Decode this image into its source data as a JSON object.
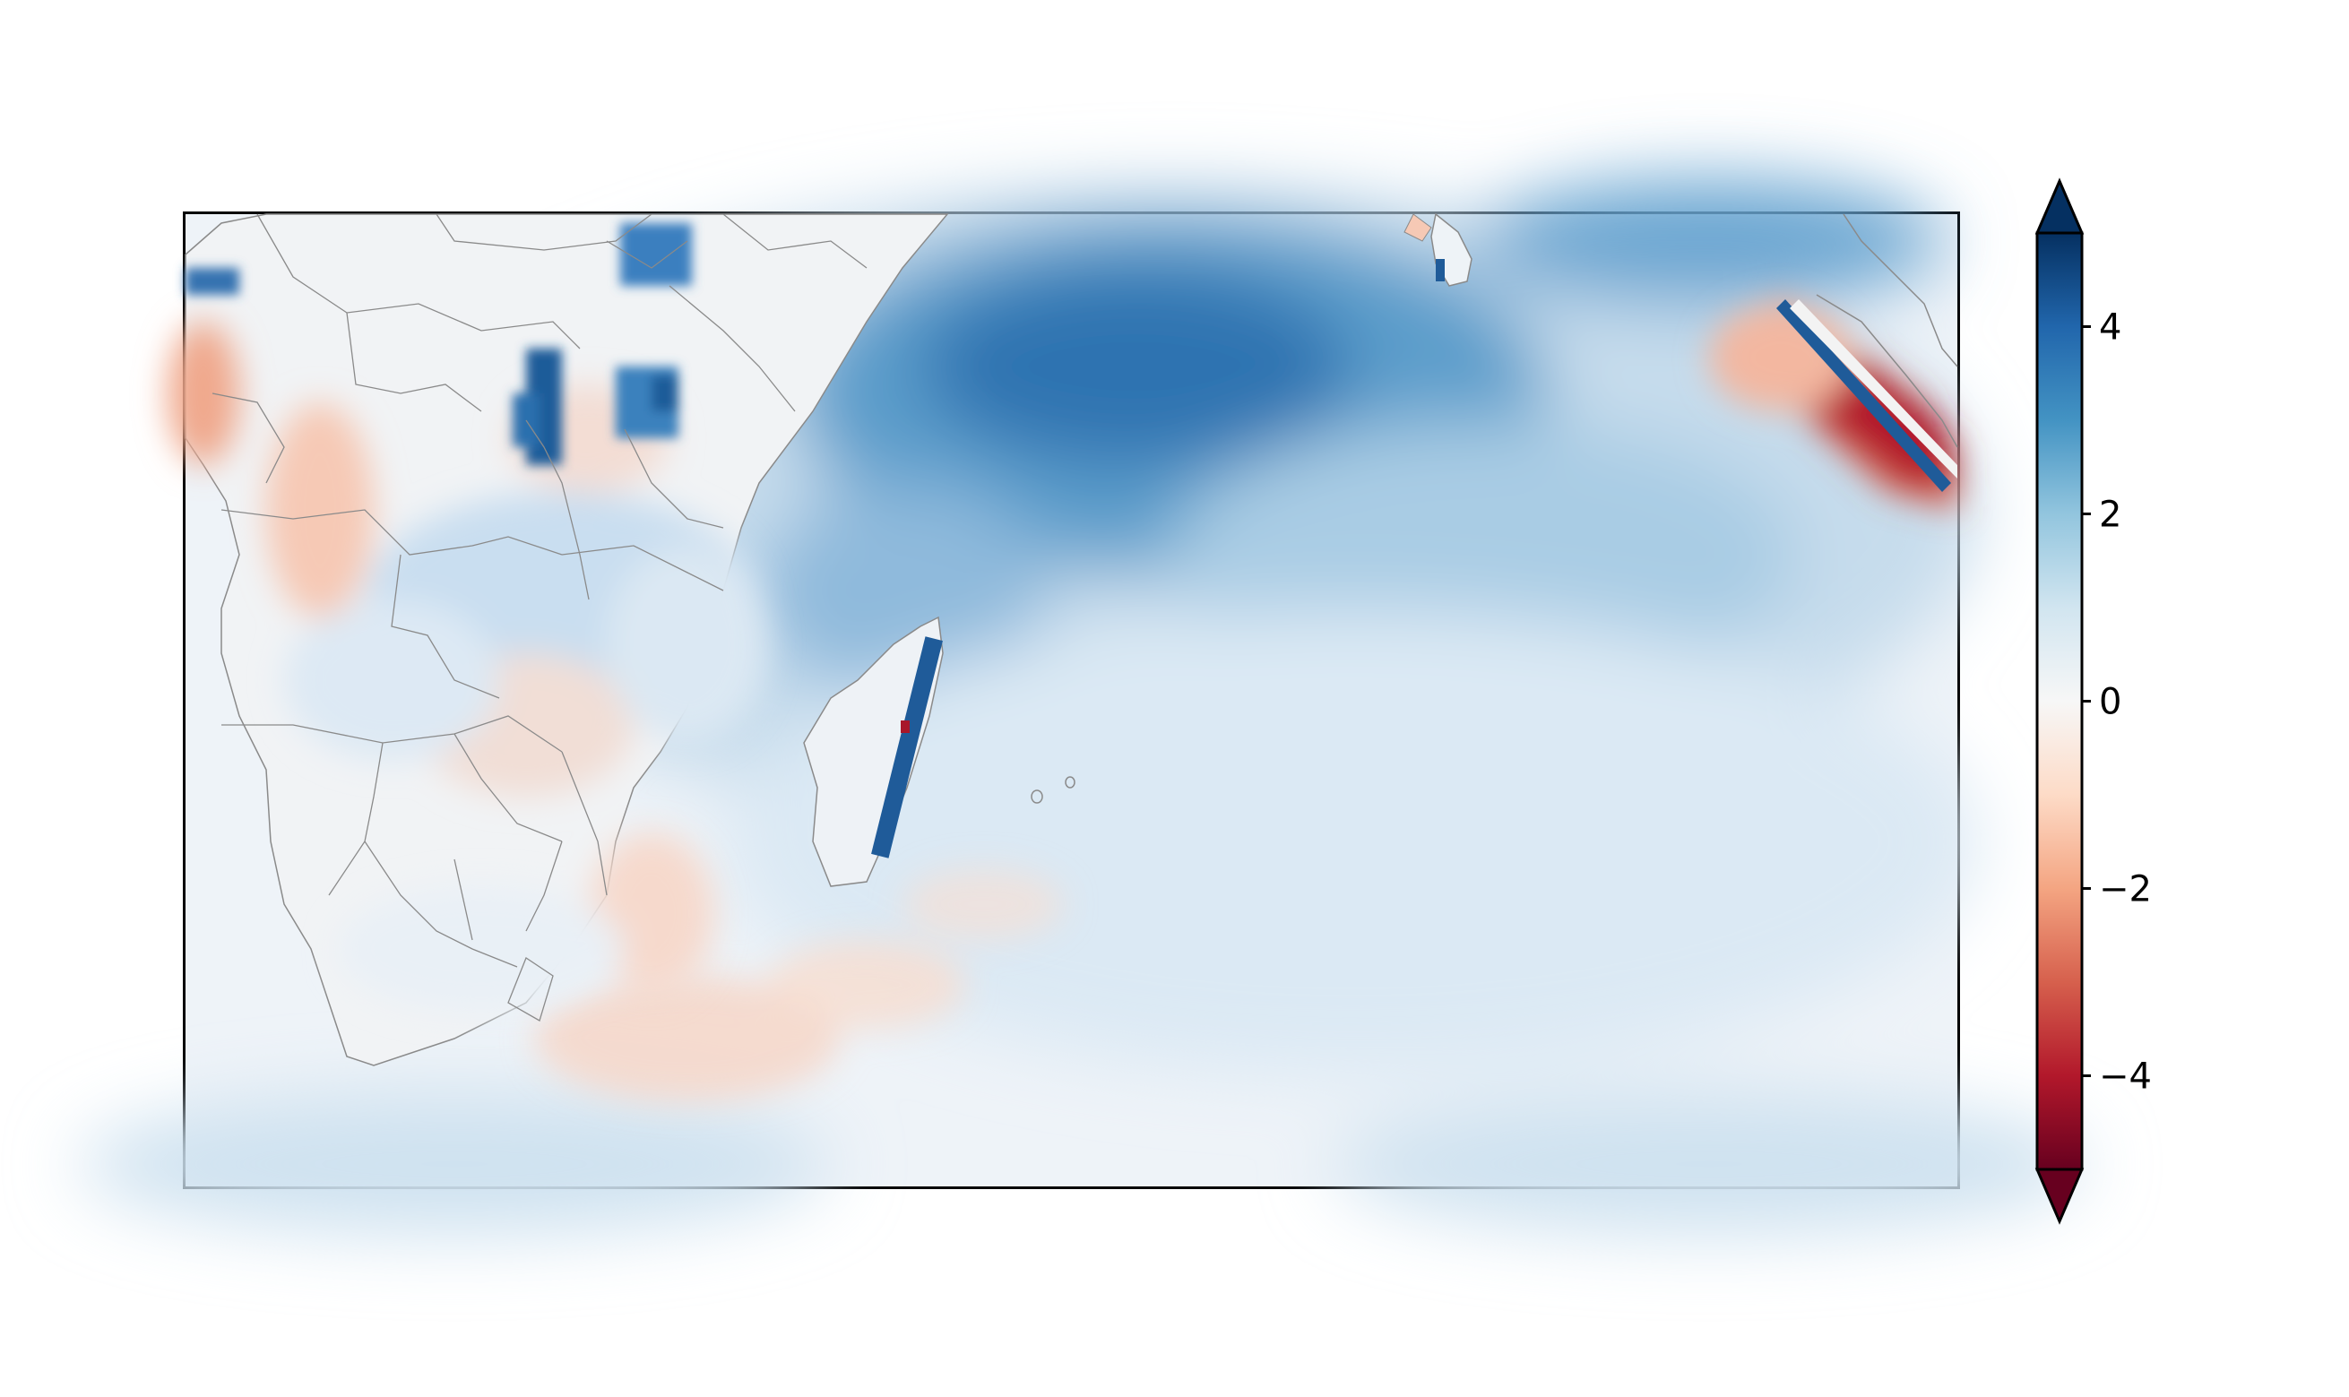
{
  "colorbar": {
    "colormap": "RdBu",
    "extend": "both",
    "vmin": -5,
    "vmax": 5,
    "ticks": [
      {
        "value": 4,
        "label": "4"
      },
      {
        "value": 2,
        "label": "2"
      },
      {
        "value": 0,
        "label": "0"
      },
      {
        "value": -2,
        "label": "−2"
      },
      {
        "value": -4,
        "label": "−4"
      }
    ],
    "colors": {
      "min": "#67001f",
      "low": "#d6604d",
      "mid": "#f7f7f7",
      "high": "#4393c3",
      "max": "#053061"
    }
  },
  "map": {
    "coastline_color": "#808080",
    "ocean_baseline": "#e9f1f7",
    "land_baseline": "#f3f4f5"
  }
}
